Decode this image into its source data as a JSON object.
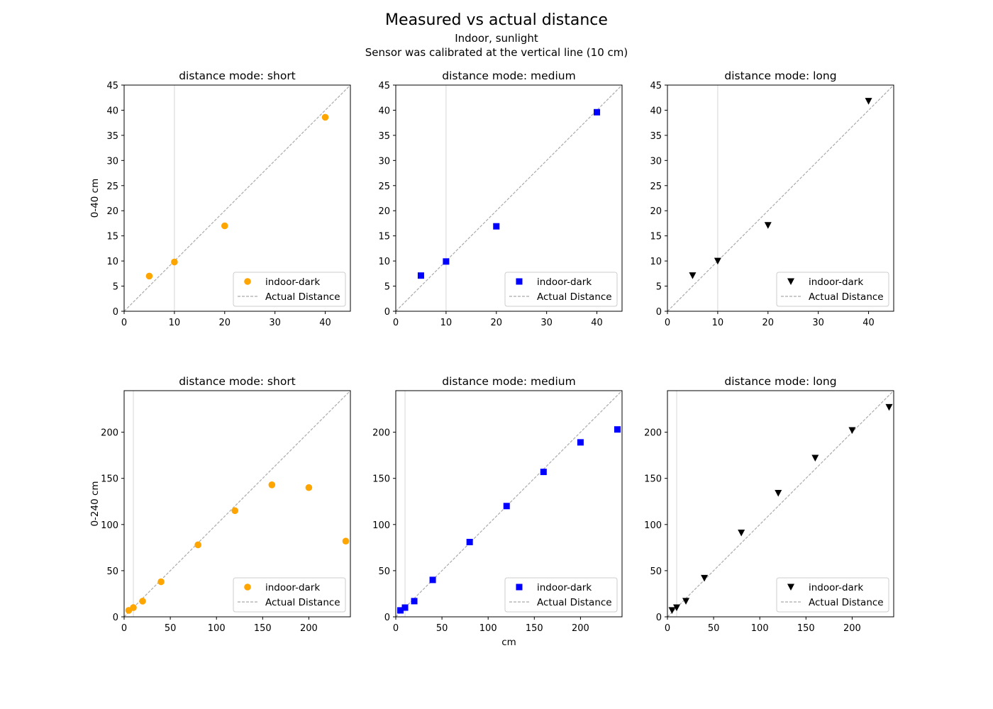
{
  "figure": {
    "title": "Measured vs actual distance",
    "subtitle_lines": [
      "Indoor, sunlight",
      "Sensor was calibrated at the vertical line (10 cm)"
    ],
    "shared_xlabel": "cm"
  },
  "colors": {
    "short": "#ffa500",
    "medium": "#0000ff",
    "long": "#000000",
    "reference_line": "#aaaaaa",
    "calibration_line": "#dddddd"
  },
  "chart_data": [
    {
      "type": "scatter",
      "title": "distance mode: short",
      "ylabel": "0-40 cm",
      "xlim": [
        0,
        45
      ],
      "ylim": [
        0,
        45
      ],
      "xticks": [
        0,
        10,
        20,
        30,
        40
      ],
      "yticks": [
        0,
        5,
        10,
        15,
        20,
        25,
        30,
        35,
        40,
        45
      ],
      "calibration_x": 10,
      "marker": "circle",
      "color_key": "short",
      "series": [
        {
          "name": "indoor-dark",
          "x": [
            5,
            10,
            20,
            40
          ],
          "y": [
            7.0,
            9.8,
            17.0,
            38.6
          ]
        }
      ],
      "reference": {
        "name": "Actual Distance"
      },
      "grid": false,
      "legend": "lower right"
    },
    {
      "type": "scatter",
      "title": "distance mode: medium",
      "ylabel": "",
      "xlim": [
        0,
        45
      ],
      "ylim": [
        0,
        45
      ],
      "xticks": [
        0,
        10,
        20,
        30,
        40
      ],
      "yticks": [
        0,
        5,
        10,
        15,
        20,
        25,
        30,
        35,
        40,
        45
      ],
      "calibration_x": 10,
      "marker": "square",
      "color_key": "medium",
      "series": [
        {
          "name": "indoor-dark",
          "x": [
            5,
            10,
            20,
            40
          ],
          "y": [
            7.1,
            9.9,
            16.9,
            39.6
          ]
        }
      ],
      "reference": {
        "name": "Actual Distance"
      },
      "grid": false,
      "legend": "lower right"
    },
    {
      "type": "scatter",
      "title": "distance mode: long",
      "ylabel": "",
      "xlim": [
        0,
        45
      ],
      "ylim": [
        0,
        45
      ],
      "xticks": [
        0,
        10,
        20,
        30,
        40
      ],
      "yticks": [
        0,
        5,
        10,
        15,
        20,
        25,
        30,
        35,
        40,
        45
      ],
      "calibration_x": 10,
      "marker": "triangle-down",
      "color_key": "long",
      "series": [
        {
          "name": "indoor-dark",
          "x": [
            5,
            10,
            20,
            40
          ],
          "y": [
            7.1,
            10.0,
            17.1,
            41.8
          ]
        }
      ],
      "reference": {
        "name": "Actual Distance"
      },
      "grid": false,
      "legend": "lower right"
    },
    {
      "type": "scatter",
      "title": "distance mode: short",
      "ylabel": "0-240 cm",
      "xlim": [
        0,
        245
      ],
      "ylim": [
        0,
        245
      ],
      "xticks": [
        0,
        50,
        100,
        150,
        200
      ],
      "yticks": [
        0,
        50,
        100,
        150,
        200
      ],
      "calibration_x": 10,
      "marker": "circle",
      "color_key": "short",
      "series": [
        {
          "name": "indoor-dark",
          "x": [
            5,
            10,
            20,
            40,
            80,
            120,
            160,
            200,
            240
          ],
          "y": [
            7,
            10,
            17,
            38,
            78,
            115,
            143,
            140,
            82
          ]
        }
      ],
      "reference": {
        "name": "Actual Distance"
      },
      "grid": false,
      "legend": "lower right"
    },
    {
      "type": "scatter",
      "title": "distance mode: medium",
      "ylabel": "",
      "xlabel": "cm",
      "xlim": [
        0,
        245
      ],
      "ylim": [
        0,
        245
      ],
      "xticks": [
        0,
        50,
        100,
        150,
        200
      ],
      "yticks": [
        0,
        50,
        100,
        150,
        200
      ],
      "calibration_x": 10,
      "marker": "square",
      "color_key": "medium",
      "series": [
        {
          "name": "indoor-dark",
          "x": [
            5,
            10,
            20,
            40,
            80,
            120,
            160,
            200,
            240
          ],
          "y": [
            7,
            10,
            17,
            40,
            81,
            120,
            157,
            189,
            203
          ]
        }
      ],
      "reference": {
        "name": "Actual Distance"
      },
      "grid": false,
      "legend": "lower right"
    },
    {
      "type": "scatter",
      "title": "distance mode: long",
      "ylabel": "",
      "xlim": [
        0,
        245
      ],
      "ylim": [
        0,
        245
      ],
      "xticks": [
        0,
        50,
        100,
        150,
        200
      ],
      "yticks": [
        0,
        50,
        100,
        150,
        200
      ],
      "calibration_x": 10,
      "marker": "triangle-down",
      "color_key": "long",
      "series": [
        {
          "name": "indoor-dark",
          "x": [
            5,
            10,
            20,
            40,
            80,
            120,
            160,
            200,
            240
          ],
          "y": [
            7,
            10,
            17,
            42,
            91,
            134,
            172,
            202,
            227
          ]
        }
      ],
      "reference": {
        "name": "Actual Distance"
      },
      "grid": false,
      "legend": "lower right"
    }
  ]
}
